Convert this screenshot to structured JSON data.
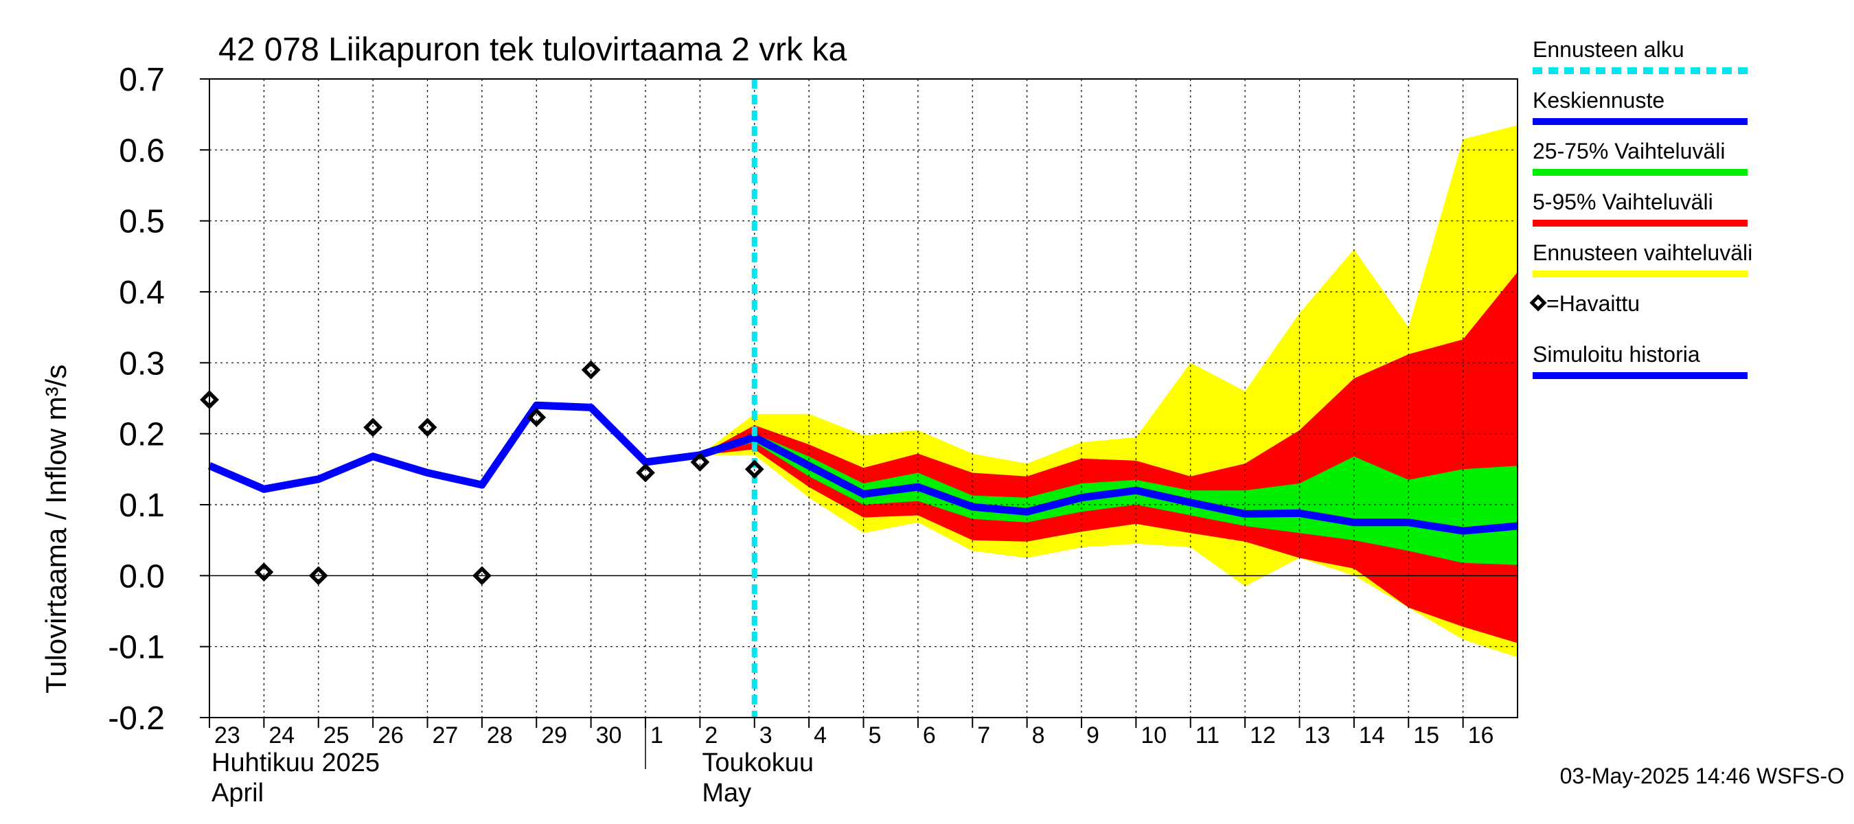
{
  "chart_data": {
    "type": "area",
    "title": "42 078 Liikapuron tek tulovirtaama 2 vrk ka",
    "ylabel": "Tulovirtaama / Inflow    m³/s",
    "ylim": [
      -0.2,
      0.7
    ],
    "yticks": [
      -0.2,
      -0.1,
      0.0,
      0.1,
      0.2,
      0.3,
      0.4,
      0.5,
      0.6,
      0.7
    ],
    "ytick_labels": [
      "-0.2",
      "-0.1",
      "0.0",
      "0.1",
      "0.2",
      "0.3",
      "0.4",
      "0.5",
      "0.6",
      "0.7"
    ],
    "xlim_days": [
      0,
      24
    ],
    "x_ticks": [
      {
        "day": 0,
        "label": "23"
      },
      {
        "day": 1,
        "label": "24"
      },
      {
        "day": 2,
        "label": "25"
      },
      {
        "day": 3,
        "label": "26"
      },
      {
        "day": 4,
        "label": "27"
      },
      {
        "day": 5,
        "label": "28"
      },
      {
        "day": 6,
        "label": "29"
      },
      {
        "day": 7,
        "label": "30"
      },
      {
        "day": 8,
        "label": "1"
      },
      {
        "day": 9,
        "label": "2"
      },
      {
        "day": 10,
        "label": "3"
      },
      {
        "day": 11,
        "label": "4"
      },
      {
        "day": 12,
        "label": "5"
      },
      {
        "day": 13,
        "label": "6"
      },
      {
        "day": 14,
        "label": "7"
      },
      {
        "day": 15,
        "label": "8"
      },
      {
        "day": 16,
        "label": "9"
      },
      {
        "day": 17,
        "label": "10"
      },
      {
        "day": 18,
        "label": "11"
      },
      {
        "day": 19,
        "label": "12"
      },
      {
        "day": 20,
        "label": "13"
      },
      {
        "day": 21,
        "label": "14"
      },
      {
        "day": 22,
        "label": "15"
      },
      {
        "day": 23,
        "label": "16"
      }
    ],
    "month_labels": [
      {
        "day": 0,
        "line1": "Huhtikuu  2025",
        "line2": "April"
      },
      {
        "day": 9,
        "line1": "Toukokuu",
        "line2": "May"
      }
    ],
    "month_separator_day": 8,
    "forecast_start_day": 10,
    "simulated_history": {
      "x": [
        0,
        1,
        2,
        3,
        4,
        5,
        6,
        7,
        8,
        9,
        10
      ],
      "y": [
        0.155,
        0.122,
        0.136,
        0.168,
        0.145,
        0.128,
        0.24,
        0.237,
        0.16,
        0.17,
        0.195
      ]
    },
    "median_forecast": {
      "x": [
        9,
        10,
        11,
        12,
        13,
        14,
        15,
        16,
        17,
        18,
        19,
        20,
        21,
        22,
        23,
        24
      ],
      "y": [
        0.17,
        0.195,
        0.155,
        0.115,
        0.125,
        0.097,
        0.09,
        0.11,
        0.12,
        0.103,
        0.087,
        0.088,
        0.075,
        0.075,
        0.063,
        0.07
      ]
    },
    "band_forecast_range": {
      "x": [
        9,
        10,
        11,
        12,
        13,
        14,
        15,
        16,
        17,
        18,
        19,
        20,
        21,
        22,
        23,
        24
      ],
      "upper": [
        0.17,
        0.228,
        0.228,
        0.198,
        0.205,
        0.172,
        0.158,
        0.188,
        0.195,
        0.3,
        0.26,
        0.37,
        0.46,
        0.35,
        0.615,
        0.635
      ],
      "lower": [
        0.17,
        0.17,
        0.11,
        0.06,
        0.075,
        0.035,
        0.025,
        0.04,
        0.045,
        0.04,
        -0.015,
        0.025,
        0.0,
        -0.045,
        -0.09,
        -0.115
      ]
    },
    "band_5_95": {
      "x": [
        9,
        10,
        11,
        12,
        13,
        14,
        15,
        16,
        17,
        18,
        19,
        20,
        21,
        22,
        23,
        24
      ],
      "upper": [
        0.17,
        0.212,
        0.185,
        0.152,
        0.172,
        0.145,
        0.14,
        0.165,
        0.162,
        0.14,
        0.158,
        0.205,
        0.278,
        0.312,
        0.333,
        0.428
      ],
      "lower": [
        0.17,
        0.178,
        0.125,
        0.082,
        0.085,
        0.05,
        0.048,
        0.062,
        0.073,
        0.06,
        0.048,
        0.025,
        0.01,
        -0.045,
        -0.072,
        -0.095
      ]
    },
    "band_25_75": {
      "x": [
        9,
        10,
        11,
        12,
        13,
        14,
        15,
        16,
        17,
        18,
        19,
        20,
        21,
        22,
        23,
        24
      ],
      "upper": [
        0.17,
        0.2,
        0.168,
        0.13,
        0.145,
        0.113,
        0.11,
        0.13,
        0.135,
        0.12,
        0.12,
        0.13,
        0.168,
        0.135,
        0.15,
        0.155
      ],
      "lower": [
        0.17,
        0.188,
        0.14,
        0.1,
        0.105,
        0.08,
        0.075,
        0.09,
        0.1,
        0.085,
        0.07,
        0.06,
        0.05,
        0.035,
        0.018,
        0.015
      ]
    },
    "observed": {
      "x": [
        0,
        1,
        2,
        3,
        4,
        5,
        6,
        7,
        8,
        9,
        10
      ],
      "y": [
        0.248,
        0.005,
        0.0,
        0.209,
        0.209,
        0.0,
        0.223,
        0.29,
        0.145,
        0.16,
        0.15
      ]
    },
    "legend": [
      {
        "label": "Ennusteen alku",
        "color": "#00e5ee",
        "style": "dashed"
      },
      {
        "label": "Keskiennuste",
        "color": "#0000ff",
        "style": "line"
      },
      {
        "label": "25-75% Vaihteluväli",
        "color": "#00ee00",
        "style": "line"
      },
      {
        "label": "5-95% Vaihteluväli",
        "color": "#ff0000",
        "style": "line"
      },
      {
        "label": "Ennusteen vaihteluväli",
        "color": "#ffff00",
        "style": "line"
      },
      {
        "label": "=Havaittu",
        "color": "#000000",
        "style": "marker"
      },
      {
        "label": "Simuloitu historia",
        "color": "#0000ff",
        "style": "line"
      }
    ],
    "timestamp": "03-May-2025 14:46 WSFS-O"
  }
}
